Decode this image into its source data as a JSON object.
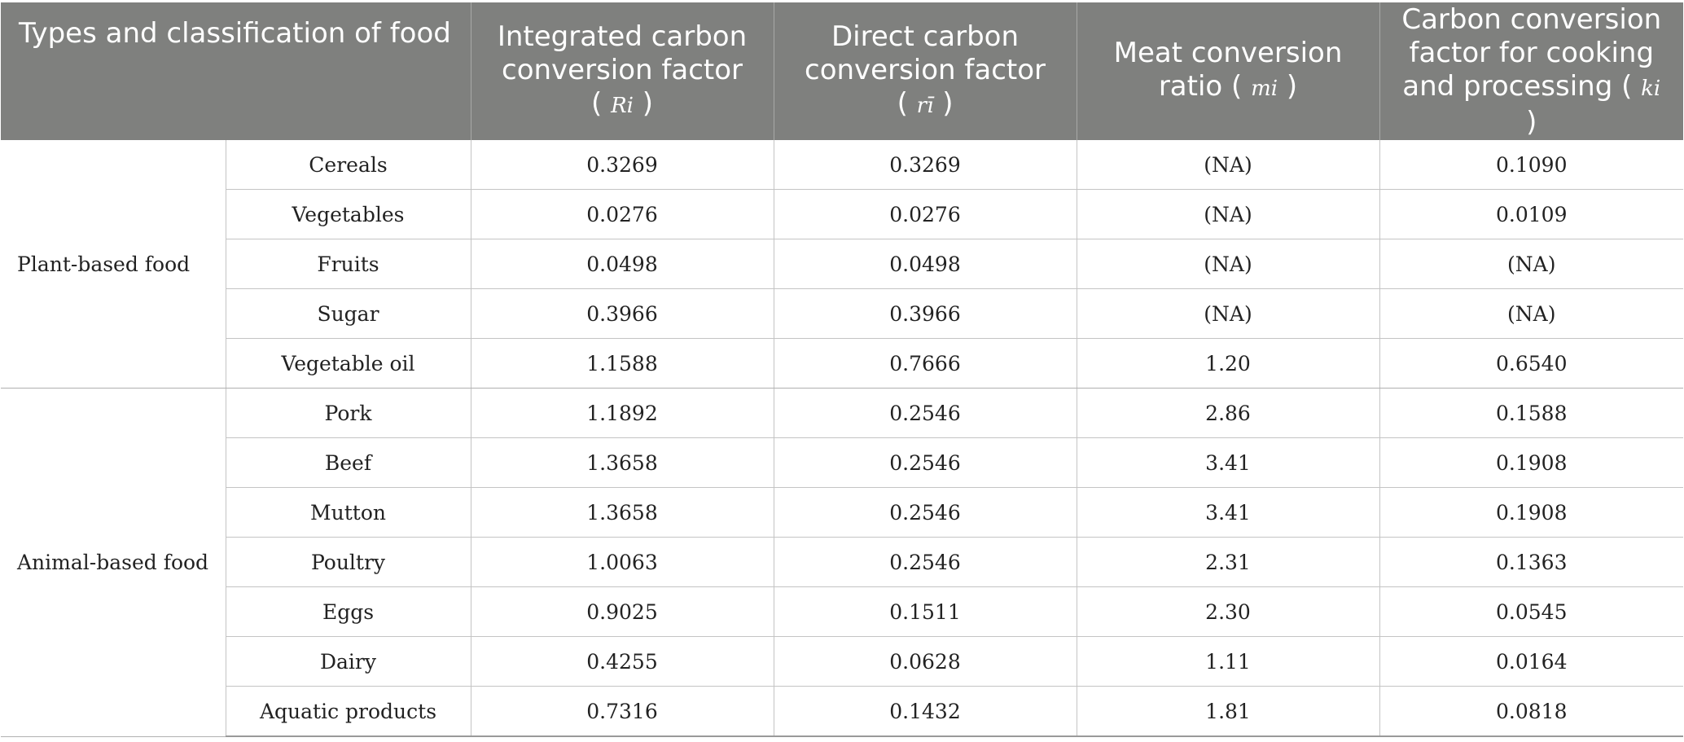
{
  "header": {
    "type_label": "Types and classification of food",
    "col_r_big": {
      "label": "Integrated carbon conversion factor",
      "symbol": "Ri"
    },
    "col_r_small": {
      "label": "Direct carbon conversion factor",
      "symbol": "rī"
    },
    "col_m": {
      "label": "Meat conversion ratio",
      "symbol": "mi"
    },
    "col_k": {
      "label": "Carbon conversion factor for cooking and processing",
      "symbol": "ki"
    }
  },
  "groups": [
    {
      "name": "Plant-based food",
      "rows": [
        {
          "food": "Cereals",
          "R": "0.3269",
          "r": "0.3269",
          "m": "(NA)",
          "k": "0.1090"
        },
        {
          "food": "Vegetables",
          "R": "0.0276",
          "r": "0.0276",
          "m": "(NA)",
          "k": "0.0109"
        },
        {
          "food": "Fruits",
          "R": "0.0498",
          "r": "0.0498",
          "m": "(NA)",
          "k": "(NA)"
        },
        {
          "food": "Sugar",
          "R": "0.3966",
          "r": "0.3966",
          "m": "(NA)",
          "k": "(NA)"
        },
        {
          "food": "Vegetable oil",
          "R": "1.1588",
          "r": "0.7666",
          "m": "1.20",
          "k": "0.6540"
        }
      ]
    },
    {
      "name": "Animal-based food",
      "rows": [
        {
          "food": "Pork",
          "R": "1.1892",
          "r": "0.2546",
          "m": "2.86",
          "k": "0.1588"
        },
        {
          "food": "Beef",
          "R": "1.3658",
          "r": "0.2546",
          "m": "3.41",
          "k": "0.1908"
        },
        {
          "food": "Mutton",
          "R": "1.3658",
          "r": "0.2546",
          "m": "3.41",
          "k": "0.1908"
        },
        {
          "food": "Poultry",
          "R": "1.0063",
          "r": "0.2546",
          "m": "2.31",
          "k": "0.1363"
        },
        {
          "food": "Eggs",
          "R": "0.9025",
          "r": "0.1511",
          "m": "2.30",
          "k": "0.0545"
        },
        {
          "food": "Dairy",
          "R": "0.4255",
          "r": "0.0628",
          "m": "1.11",
          "k": "0.0164"
        },
        {
          "food": "Aquatic products",
          "R": "0.7316",
          "r": "0.1432",
          "m": "1.81",
          "k": "0.0818"
        }
      ]
    }
  ]
}
